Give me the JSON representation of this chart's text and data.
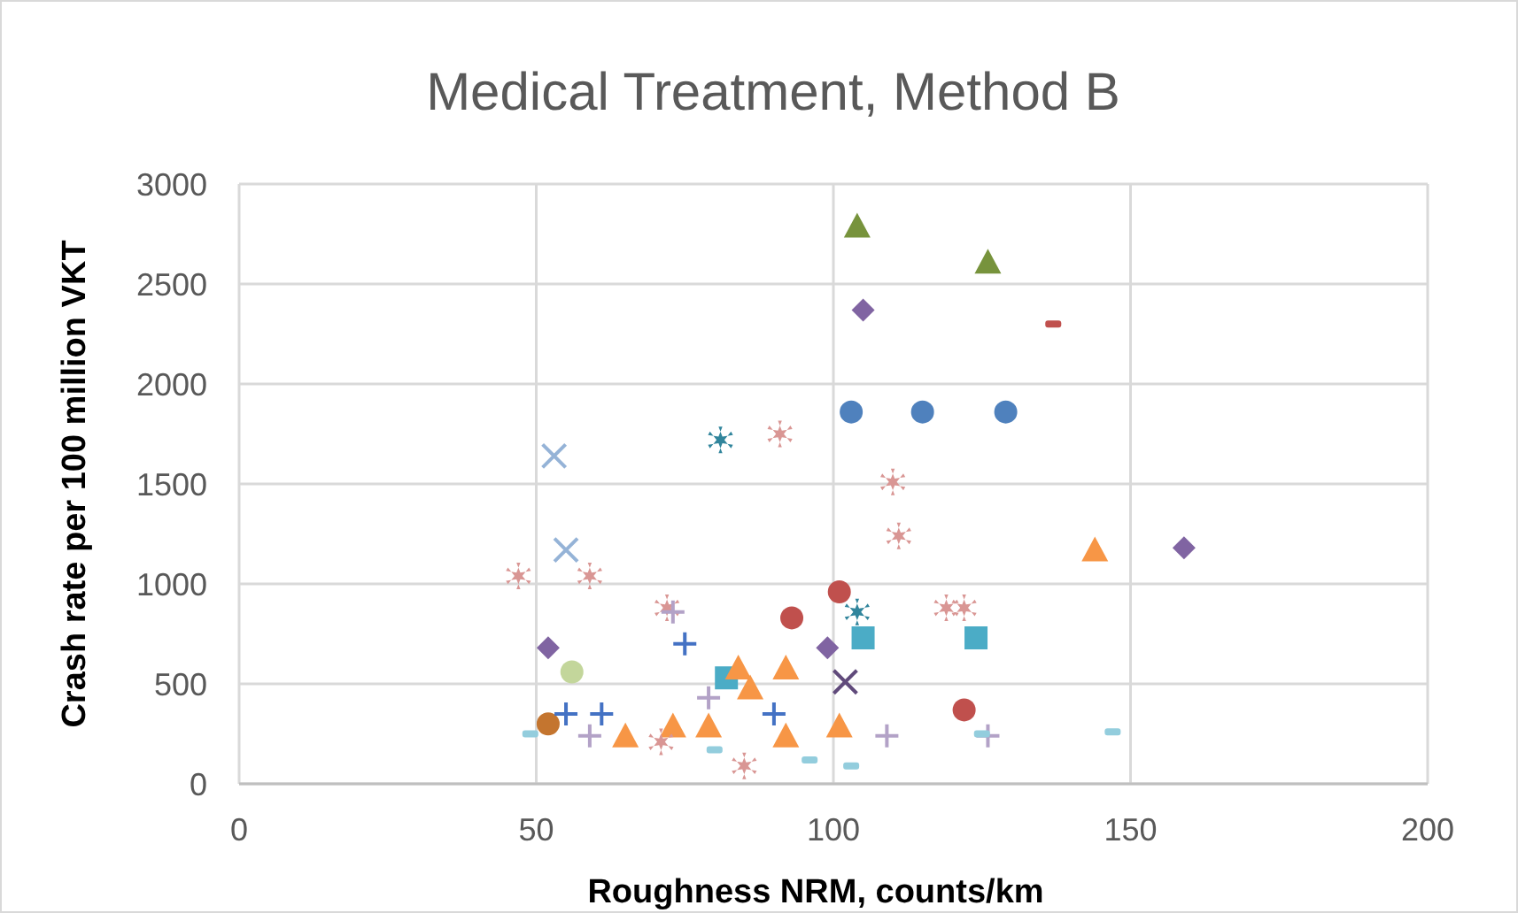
{
  "chart_data": {
    "type": "scatter",
    "title": "Medical Treatment, Method B",
    "xlabel": "Roughness NRM, counts/km",
    "ylabel": "Crash rate per 100 million VKT",
    "xlim": [
      0,
      200
    ],
    "xticks": [
      0,
      50,
      100,
      150,
      200
    ],
    "ylim": [
      0,
      3000
    ],
    "yticks": [
      0,
      500,
      1000,
      1500,
      2000,
      2500,
      3000
    ],
    "grid": true,
    "series": [
      {
        "color": "#4f81bd",
        "marker": "circle",
        "x": [
          103,
          115,
          129
        ],
        "values": [
          1860,
          1860,
          1860
        ]
      },
      {
        "color": "#c0504d",
        "marker": "circle",
        "x": [
          101,
          93,
          122
        ],
        "values": [
          960,
          830,
          370
        ]
      },
      {
        "color": "#c0504d",
        "x": [
          137
        ],
        "values": [
          2300
        ]
      },
      {
        "color": "#c4752f",
        "marker": "circle",
        "x": [
          52
        ],
        "values": [
          300
        ]
      },
      {
        "color": "#c3d69b",
        "marker": "circle",
        "x": [
          56
        ],
        "values": [
          560
        ]
      },
      {
        "color": "#77933c",
        "marker": "triangle",
        "x": [
          104,
          126
        ],
        "values": [
          2790,
          2610
        ]
      },
      {
        "color": "#8064a2",
        "marker": "diamond",
        "x": [
          105,
          52,
          99,
          159
        ],
        "values": [
          2370,
          680,
          680,
          1180
        ]
      },
      {
        "color": "#4bacc6",
        "marker": "square",
        "x": [
          82,
          105,
          124
        ],
        "values": [
          530,
          730,
          730
        ]
      },
      {
        "color": "#f79646",
        "marker": "triangle",
        "x": [
          65,
          73,
          79,
          84,
          86,
          92,
          92,
          101,
          144
        ],
        "values": [
          240,
          290,
          290,
          580,
          480,
          580,
          240,
          290,
          1170
        ]
      },
      {
        "color": "#95b3d7",
        "marker": "cross",
        "x": [
          53,
          55
        ],
        "values": [
          1640,
          1170
        ]
      },
      {
        "color": "#604a7b",
        "marker": "cross",
        "x": [
          102
        ],
        "values": [
          510
        ]
      },
      {
        "color": "#31859c",
        "marker": "star",
        "x": [
          81,
          104
        ],
        "values": [
          1720,
          860
        ]
      },
      {
        "color": "#d99694",
        "marker": "star",
        "x": [
          47,
          59,
          91,
          110,
          111,
          72,
          119,
          122,
          71,
          85
        ],
        "values": [
          1040,
          1040,
          1750,
          1510,
          1240,
          880,
          880,
          880,
          210,
          90
        ]
      },
      {
        "color": "#4472c4",
        "marker": "plus",
        "x": [
          55,
          61,
          75,
          90
        ],
        "values": [
          350,
          350,
          700,
          350
        ]
      },
      {
        "color": "#b3a2c7",
        "marker": "plus",
        "x": [
          59,
          73,
          79,
          109,
          126
        ],
        "values": [
          240,
          860,
          430,
          240,
          240
        ]
      },
      {
        "color": "#93cddd",
        "x": [
          49,
          80,
          96,
          103,
          125,
          147
        ],
        "values": [
          250,
          170,
          120,
          90,
          250,
          260
        ]
      }
    ]
  }
}
